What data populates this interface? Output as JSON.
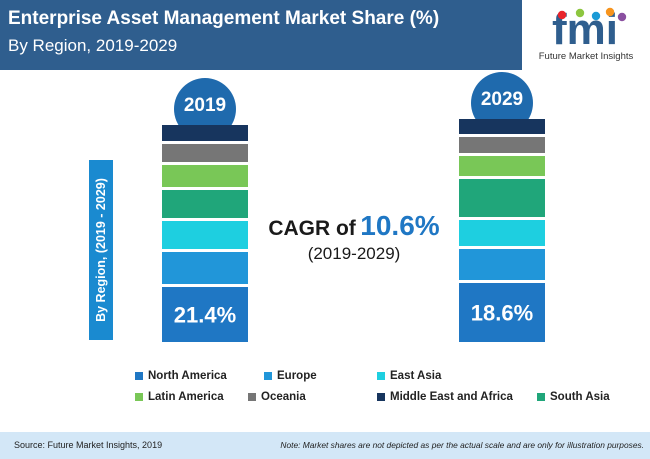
{
  "header": {
    "title": "Enterprise Asset Management Market Share (%)",
    "subtitle": "By Region, 2019-2029"
  },
  "logo": {
    "mark": "fmi",
    "name": "Future Market Insights",
    "colors": [
      "#e8242b",
      "#8dc63f",
      "#1b9ad6",
      "#f7941d",
      "#8a4fa0"
    ]
  },
  "side_label": "By Region, (2019 - 2029)",
  "cagr": {
    "label": "CAGR of",
    "value": "10.6%",
    "period": "(2019-2029)"
  },
  "chart_data": {
    "type": "bar",
    "stacked": true,
    "categories": [
      "2019",
      "2029"
    ],
    "series": [
      {
        "name": "North America",
        "color": "#1f77c4",
        "label_values": [
          "21.4%",
          "18.6%"
        ]
      },
      {
        "name": "Europe",
        "color": "#2196d9"
      },
      {
        "name": "East Asia",
        "color": "#1ecfe0"
      },
      {
        "name": "South Asia",
        "color": "#20a67a"
      },
      {
        "name": "Latin America",
        "color": "#79c757"
      },
      {
        "name": "Oceania",
        "color": "#767676"
      },
      {
        "name": "Middle East and Africa",
        "color": "#17355e"
      }
    ],
    "relative_heights": [
      [
        55,
        32,
        28,
        28,
        22,
        18,
        16
      ],
      [
        59,
        31,
        26,
        38,
        20,
        16,
        15
      ]
    ],
    "legend": [
      [
        "North America",
        "Europe",
        "East Asia"
      ],
      [
        "Latin America",
        "Oceania",
        "Middle East and Africa",
        "South Asia"
      ]
    ],
    "legend_position": "bottom"
  },
  "footer": {
    "source": "Source: Future Market Insights, 2019",
    "note": "Note: Market shares are not depicted as per the actual scale and are only for illustration purposes."
  }
}
